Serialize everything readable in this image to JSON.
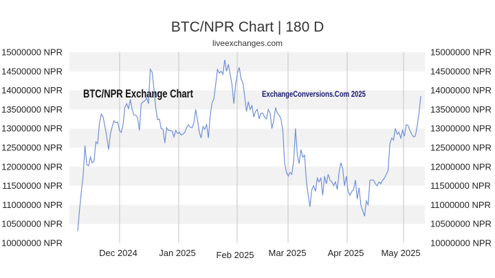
{
  "chart_data": {
    "type": "line",
    "title": "BTC/NPR Chart | 180 D",
    "subtitle": "liveexchanges.com",
    "watermark_left": "BTC/NPR Exchange Chart",
    "watermark_right": "ExchangeConversions.Com 2025",
    "xlabel": "",
    "ylabel": "",
    "ylim": [
      10000000,
      15000000
    ],
    "y_ticks": [
      "10000000 NPR",
      "10500000 NPR",
      "11000000 NPR",
      "11500000 NPR",
      "12000000 NPR",
      "12500000 NPR",
      "13000000 NPR",
      "13500000 NPR",
      "14000000 NPR",
      "14500000 NPR",
      "15000000 NPR"
    ],
    "x_ticks": [
      "Dec 2024",
      "Jan 2025",
      "Feb 2025",
      "Mar 2025",
      "Apr 2025",
      "May 2025"
    ],
    "grid": true,
    "line_color": "#6f8fd8",
    "band_color": "#f2f2f2",
    "series": [
      {
        "values": [
          10310000,
          10850000,
          11350000,
          11750000,
          12550000,
          12050000,
          12020000,
          12250000,
          12100000,
          12150000,
          12650000,
          12600000,
          13150000,
          13380000,
          13300000,
          13050000,
          12800000,
          12450000,
          12850000,
          13050000,
          13200000,
          13150000,
          13170000,
          12950000,
          12900000,
          13100000,
          13550000,
          13650000,
          13520000,
          13760000,
          13500000,
          13350000,
          13350000,
          13280000,
          12950000,
          13650000,
          13700000,
          13720000,
          13800000,
          13650000,
          14550000,
          14480000,
          14050000,
          13550000,
          13230000,
          13250000,
          13000000,
          12980000,
          12620000,
          13020000,
          12950000,
          12950000,
          12930000,
          12780000,
          12950000,
          12870000,
          12900000,
          12830000,
          12850000,
          12900000,
          13020000,
          13100000,
          13030000,
          13020000,
          13150000,
          13500000,
          13220000,
          12900000,
          12750000,
          13050000,
          12980000,
          13100000,
          12750000,
          13330000,
          13670000,
          13770000,
          14150000,
          14550000,
          14450000,
          14500000,
          14420000,
          14800000,
          14500000,
          14680000,
          14420000,
          14150000,
          13650000,
          14150000,
          14450000,
          14600000,
          14300000,
          14200000,
          13850000,
          13450000,
          13700000,
          13500000,
          13600000,
          13300000,
          13450000,
          13500000,
          13250000,
          13400000,
          13400000,
          13300000,
          13250000,
          13500000,
          13400000,
          13000000,
          13200000,
          13550000,
          13400000,
          13350000,
          13250000,
          12950000,
          12100000,
          11850000,
          11750000,
          11850000,
          11800000,
          12150000,
          13000000,
          12300000,
          12080000,
          12450000,
          12250000,
          12300000,
          11600000,
          11250000,
          10950000,
          11400000,
          11500000,
          11350000,
          11700000,
          11600000,
          11700000,
          11250000,
          11750000,
          11550000,
          11800000,
          11650000,
          11600000,
          11500000,
          11600000,
          11400000,
          11850000,
          12100000,
          11950000,
          11500000,
          11750000,
          11350000,
          11250000,
          11350000,
          11400000,
          11650000,
          11150000,
          11450000,
          11000000,
          10850000,
          10700000,
          11100000,
          11000000,
          11650000,
          11650000,
          11650000,
          11550000,
          11500000,
          11600000,
          11550000,
          11650000,
          11700000,
          11800000,
          11900000,
          12600000,
          12750000,
          12700000,
          13000000,
          12850000,
          12900000,
          12750000,
          12950000,
          12800000,
          13100000,
          13080000,
          12950000,
          12850000,
          12780000,
          12800000,
          13050000,
          13400000,
          13850000
        ]
      }
    ]
  }
}
